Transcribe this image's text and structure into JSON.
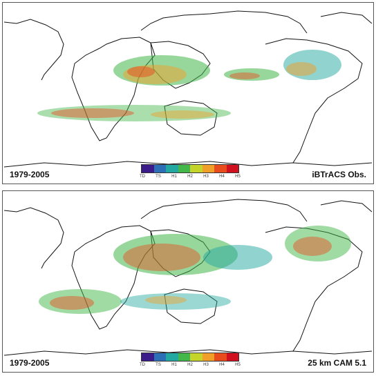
{
  "figure": {
    "colors": {
      "land_outline": "#111111",
      "ocean": "#ffffff",
      "intensity": [
        "#3b1a8a",
        "#2c6fb7",
        "#22a8a0",
        "#43b74a",
        "#c4d42b",
        "#f0a028",
        "#e84c1c",
        "#d0101e"
      ]
    },
    "legend_ticks": [
      "TD",
      "TS",
      "H1",
      "H2",
      "H3",
      "H4",
      "H5"
    ],
    "panels": [
      {
        "id": "top",
        "period": "1979-2005",
        "source": "iBTrACS Obs."
      },
      {
        "id": "bottom",
        "period": "1979-2005",
        "source": "25 km CAM 5.1"
      }
    ]
  }
}
